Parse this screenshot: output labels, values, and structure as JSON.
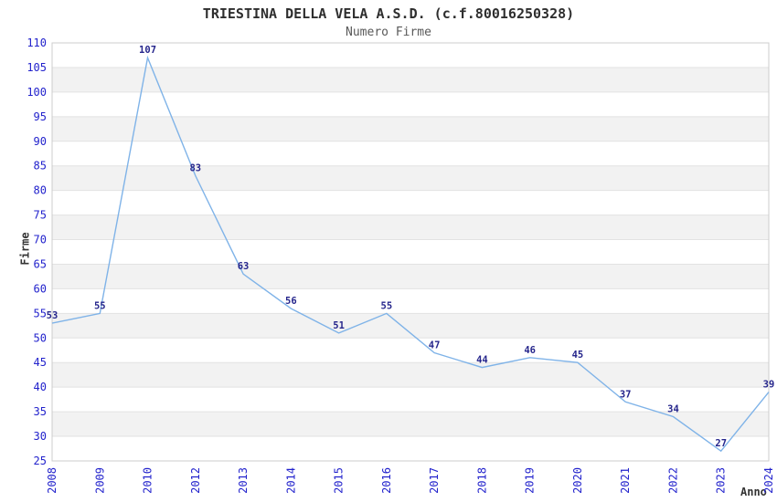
{
  "chart_data": {
    "type": "line",
    "title": "TRIESTINA DELLA VELA A.S.D. (c.f.80016250328)",
    "subtitle": "Numero Firme",
    "xlabel": "Anno",
    "ylabel": "Firme",
    "categories": [
      "2008",
      "2009",
      "2010",
      "2012",
      "2013",
      "2014",
      "2015",
      "2016",
      "2017",
      "2018",
      "2019",
      "2020",
      "2021",
      "2022",
      "2023",
      "2024"
    ],
    "values": [
      53,
      55,
      107,
      83,
      63,
      56,
      51,
      55,
      47,
      44,
      46,
      45,
      37,
      34,
      27,
      39
    ],
    "ylim": [
      25,
      110
    ],
    "ytick_step": 5,
    "grid": "horizontal gridlines with alternating shaded bands",
    "legend": "none",
    "data_labels_shown": true,
    "colors": {
      "line": "#7FB3E8",
      "tick_label": "#2222CC",
      "data_label": "#26268C",
      "band_fill": "#F2F2F2",
      "gridline": "#E2E2E2",
      "plot_border": "#CCCCCC",
      "title": "#2E2E2E",
      "subtitle": "#595959",
      "axis_title": "#333333",
      "background": "#FFFFFF"
    }
  }
}
